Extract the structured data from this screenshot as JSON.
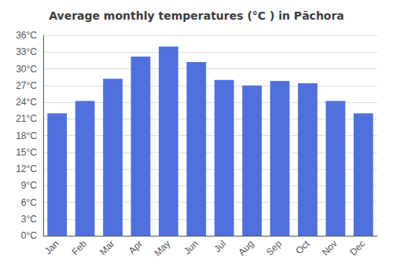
{
  "chart_data": {
    "type": "bar",
    "title": "Average monthly temperatures (°C ) in Pāchora",
    "categories": [
      "Jan",
      "Feb",
      "Mar",
      "Apr",
      "May",
      "Jun",
      "Jul",
      "Aug",
      "Sep",
      "Oct",
      "Nov",
      "Dec"
    ],
    "values": [
      22.0,
      24.2,
      28.2,
      32.2,
      34.0,
      31.2,
      28.0,
      27.0,
      27.8,
      27.4,
      24.2,
      22.0
    ],
    "ylim": [
      0,
      36
    ],
    "yticks": [
      {
        "value": 0,
        "label": "0°C"
      },
      {
        "value": 3,
        "label": "3°C"
      },
      {
        "value": 6,
        "label": "6°C"
      },
      {
        "value": 9,
        "label": "9°C"
      },
      {
        "value": 12,
        "label": "12°C"
      },
      {
        "value": 15,
        "label": "15°C"
      },
      {
        "value": 18,
        "label": "18°C"
      },
      {
        "value": 21,
        "label": "21°C"
      },
      {
        "value": 24,
        "label": "24°C"
      },
      {
        "value": 27,
        "label": "27°C"
      },
      {
        "value": 30,
        "label": "30°C"
      },
      {
        "value": 33,
        "label": "33°C"
      },
      {
        "value": 36,
        "label": "36°C"
      }
    ],
    "grid": true
  }
}
